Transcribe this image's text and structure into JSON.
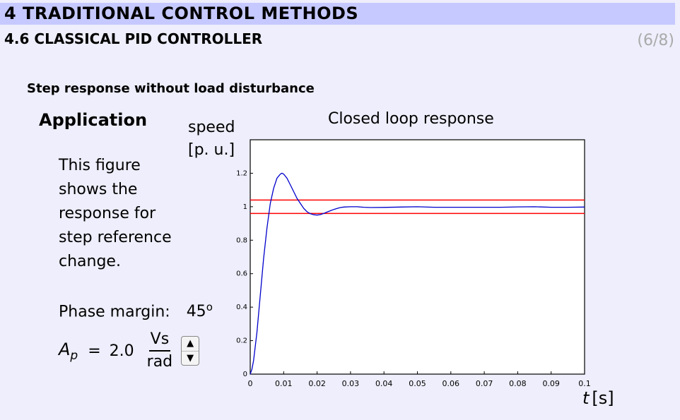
{
  "header": {
    "chapter": "4 TRADITIONAL CONTROL METHODS",
    "section": "4.6 CLASSICAL PID CONTROLLER",
    "page_indicator": "(6/8)"
  },
  "slide": {
    "subtitle": "Step response without load disturbance",
    "application_title": "Application",
    "description": "This figure shows the response for step reference change.",
    "phase_margin_label": "Phase margin:",
    "phase_margin_value": "45",
    "phase_margin_unit": "o",
    "ap_symbol": "A",
    "ap_subscript": "p",
    "ap_equals": "=",
    "ap_value": "2.0",
    "ap_unit_numerator": "Vs",
    "ap_unit_denominator": "rad",
    "stepper_up": "▲",
    "stepper_down": "▼"
  },
  "chart_data": {
    "type": "line",
    "title": "Closed loop response",
    "ylabel_line1": "speed",
    "ylabel_line2": "[p. u.]",
    "xlabel_symbol": "t",
    "xlabel_unit": "[s]",
    "xlim": [
      0,
      0.1
    ],
    "ylim": [
      0,
      1.4
    ],
    "xticks": [
      0,
      0.01,
      0.02,
      0.03,
      0.04,
      0.05,
      0.06,
      0.07,
      0.08,
      0.09,
      0.1
    ],
    "xtick_labels": [
      "0",
      "0.01",
      "0.02",
      "0.03",
      "0.04",
      "0.05",
      "0.06",
      "0.07",
      "0.08",
      "0.09",
      "0.1"
    ],
    "yticks": [
      0,
      0.2,
      0.4,
      0.6,
      0.8,
      1,
      1.2
    ],
    "ytick_labels": [
      "0",
      "0.2",
      "0.4",
      "0.6",
      "0.8",
      "1",
      "1.2"
    ],
    "grid": false,
    "series": [
      {
        "color": "#0000cc",
        "x": [
          0,
          0.0005,
          0.001,
          0.002,
          0.003,
          0.004,
          0.005,
          0.006,
          0.007,
          0.008,
          0.009,
          0.0095,
          0.01,
          0.011,
          0.012,
          0.013,
          0.014,
          0.015,
          0.016,
          0.017,
          0.018,
          0.019,
          0.02,
          0.021,
          0.022,
          0.023,
          0.024,
          0.025,
          0.026,
          0.027,
          0.028,
          0.03,
          0.032,
          0.034,
          0.036,
          0.04,
          0.045,
          0.05,
          0.055,
          0.06,
          0.065,
          0.07,
          0.075,
          0.08,
          0.085,
          0.09,
          0.095,
          0.1
        ],
        "y": [
          0,
          0.03,
          0.08,
          0.25,
          0.47,
          0.69,
          0.87,
          1.02,
          1.11,
          1.17,
          1.195,
          1.2,
          1.195,
          1.17,
          1.13,
          1.09,
          1.05,
          1.02,
          0.99,
          0.97,
          0.958,
          0.952,
          0.95,
          0.953,
          0.96,
          0.968,
          0.976,
          0.984,
          0.99,
          0.995,
          0.998,
          1.0,
          1.0,
          0.997,
          0.995,
          0.996,
          0.998,
          1.0,
          0.997,
          0.997,
          0.997,
          0.997,
          0.997,
          0.999,
          1.0,
          0.997,
          0.997,
          0.998
        ]
      }
    ],
    "reference_lines": [
      {
        "y": 1.04,
        "color": "#ff0000"
      },
      {
        "y": 0.96,
        "color": "#ff0000"
      }
    ]
  }
}
